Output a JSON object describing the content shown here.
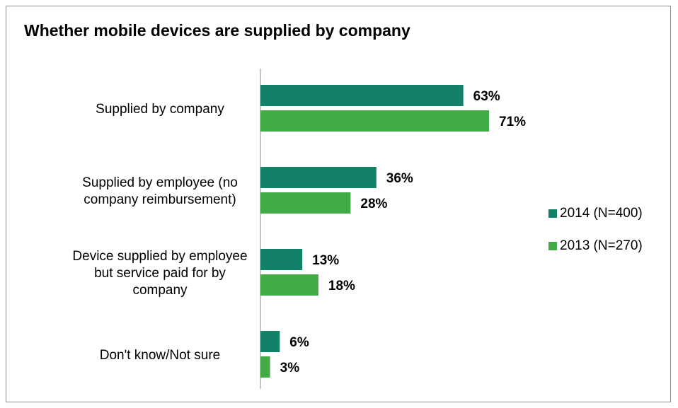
{
  "chart_data": {
    "type": "bar",
    "orientation": "horizontal",
    "title": "Whether mobile devices are supplied by company",
    "categories": [
      [
        "Supplied by company"
      ],
      [
        "Supplied by employee (no",
        "company reimbursement)"
      ],
      [
        "Device supplied by employee",
        "but service paid for by",
        "company"
      ],
      [
        "Don't know/Not sure"
      ]
    ],
    "series": [
      {
        "name": "2014 (N=400)",
        "color": "#13806a",
        "values": [
          63,
          36,
          13,
          6
        ],
        "labels": [
          "63%",
          "36%",
          "13%",
          "6%"
        ]
      },
      {
        "name": "2013 (N=270)",
        "color": "#42ab45",
        "values": [
          71,
          28,
          18,
          3
        ],
        "labels": [
          "71%",
          "28%",
          "18%",
          "3%"
        ]
      }
    ],
    "xlim": [
      0,
      100
    ],
    "unit": "%",
    "legend": "right",
    "grid": false
  }
}
